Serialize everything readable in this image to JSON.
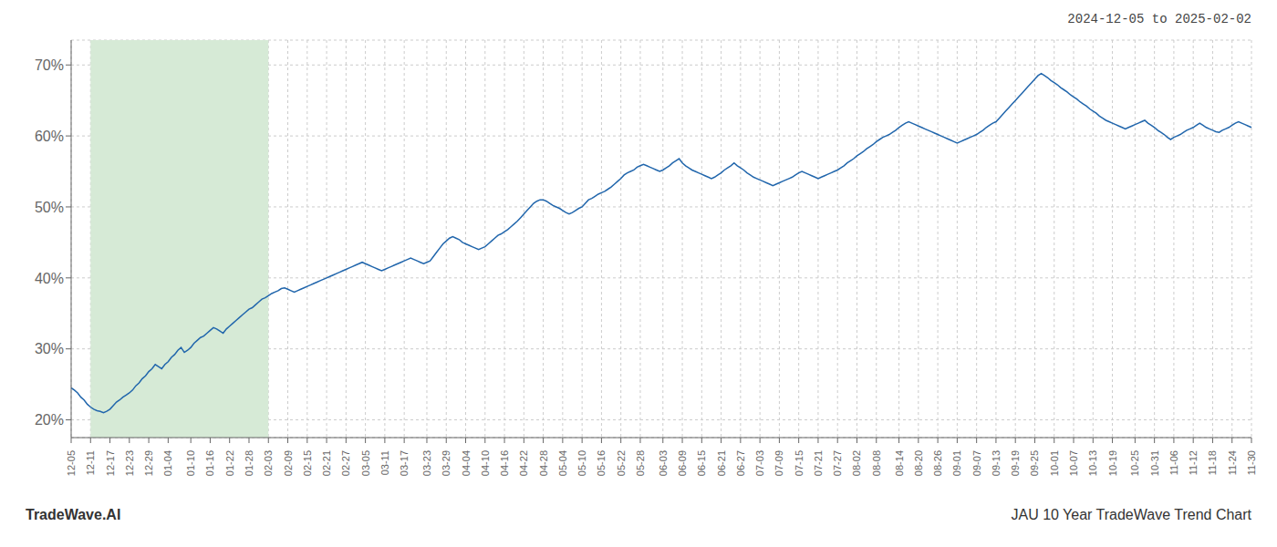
{
  "chart_data": {
    "type": "line",
    "title": "2024-12-05 to 2025-02-02",
    "annotations": [
      "TradeWave.AI",
      "JAU 10 Year TradeWave Trend Chart"
    ],
    "categories": [
      "12-05",
      null,
      null,
      null,
      null,
      null,
      "12-11",
      null,
      null,
      null,
      null,
      null,
      "12-17",
      null,
      null,
      null,
      null,
      null,
      "12-23",
      null,
      null,
      null,
      null,
      null,
      "12-29",
      null,
      null,
      null,
      null,
      null,
      "01-04",
      null,
      null,
      null,
      null,
      null,
      null,
      "01-10",
      null,
      null,
      null,
      null,
      null,
      "01-16",
      null,
      null,
      null,
      null,
      null,
      "01-22",
      null,
      null,
      null,
      null,
      null,
      "01-28",
      null,
      null,
      null,
      null,
      null,
      "02-03",
      null,
      null,
      null,
      null,
      null,
      "02-09",
      null,
      null,
      null,
      null,
      null,
      "02-15",
      null,
      null,
      null,
      null,
      null,
      "02-21",
      null,
      null,
      null,
      null,
      null,
      "02-27",
      null,
      null,
      null,
      null,
      null,
      "03-05",
      null,
      null,
      null,
      null,
      null,
      "03-11",
      null,
      null,
      null,
      null,
      null,
      "03-17",
      null,
      null,
      null,
      null,
      null,
      null,
      "03-23",
      null,
      null,
      null,
      null,
      null,
      "03-29",
      null,
      null,
      null,
      null,
      null,
      "04-04",
      null,
      null,
      null,
      null,
      null,
      "04-10",
      null,
      null,
      null,
      null,
      null,
      "04-16",
      null,
      null,
      null,
      null,
      null,
      "04-22",
      null,
      null,
      null,
      null,
      null,
      "04-28",
      null,
      null,
      null,
      null,
      null,
      "05-04",
      null,
      null,
      null,
      null,
      null,
      "05-10",
      null,
      null,
      null,
      null,
      null,
      "05-16",
      null,
      null,
      null,
      null,
      null,
      "05-22",
      null,
      null,
      null,
      null,
      null,
      "05-28",
      null,
      null,
      null,
      null,
      null,
      null,
      "06-03",
      null,
      null,
      null,
      null,
      null,
      "06-09",
      null,
      null,
      null,
      null,
      null,
      "06-15",
      null,
      null,
      null,
      null,
      null,
      "06-21",
      null,
      null,
      null,
      null,
      null,
      "06-27",
      null,
      null,
      null,
      null,
      null,
      "07-03",
      null,
      null,
      null,
      null,
      null,
      "07-09",
      null,
      null,
      null,
      null,
      null,
      "07-15",
      null,
      null,
      null,
      null,
      null,
      "07-21",
      null,
      null,
      null,
      null,
      null,
      "07-27",
      null,
      null,
      null,
      null,
      null,
      "08-02",
      null,
      null,
      null,
      null,
      null,
      "08-08",
      null,
      null,
      null,
      null,
      null,
      null,
      "08-14",
      null,
      null,
      null,
      null,
      null,
      "08-20",
      null,
      null,
      null,
      null,
      null,
      "08-26",
      null,
      null,
      null,
      null,
      null,
      "09-01",
      null,
      null,
      null,
      null,
      null,
      "09-07",
      null,
      null,
      null,
      null,
      null,
      "09-13",
      null,
      null,
      null,
      null,
      null,
      "09-19",
      null,
      null,
      null,
      null,
      null,
      "09-25",
      null,
      null,
      null,
      null,
      null,
      "10-01",
      null,
      null,
      null,
      null,
      null,
      "10-07",
      null,
      null,
      null,
      null,
      null,
      "10-13",
      null,
      null,
      null,
      null,
      null,
      "10-19",
      null,
      null,
      null,
      null,
      null,
      null,
      "10-25",
      null,
      null,
      null,
      null,
      null,
      "10-31",
      null,
      null,
      null,
      null,
      null,
      "11-06",
      null,
      null,
      null,
      null,
      null,
      "11-12",
      null,
      null,
      null,
      null,
      null,
      "11-18",
      null,
      null,
      null,
      null,
      null,
      "11-24",
      null,
      null,
      null,
      null,
      null,
      "11-30"
    ],
    "values": [
      0.245,
      0.242,
      0.238,
      0.232,
      0.228,
      0.222,
      0.218,
      0.215,
      0.213,
      0.212,
      0.21,
      0.212,
      0.215,
      0.22,
      0.225,
      0.228,
      0.232,
      0.235,
      0.238,
      0.242,
      0.248,
      0.252,
      0.258,
      0.262,
      0.268,
      0.272,
      0.278,
      0.275,
      0.272,
      0.278,
      0.282,
      0.288,
      0.292,
      0.298,
      0.302,
      0.295,
      0.298,
      0.302,
      0.308,
      0.312,
      0.316,
      0.318,
      0.322,
      0.326,
      0.33,
      0.328,
      0.325,
      0.322,
      0.328,
      0.332,
      0.336,
      0.34,
      0.344,
      0.348,
      0.352,
      0.356,
      0.358,
      0.362,
      0.366,
      0.37,
      0.372,
      0.375,
      0.378,
      0.38,
      0.382,
      0.385,
      0.386,
      0.384,
      0.382,
      0.38,
      0.382,
      0.384,
      0.386,
      0.388,
      0.39,
      0.392,
      0.394,
      0.396,
      0.398,
      0.4,
      0.402,
      0.404,
      0.406,
      0.408,
      0.41,
      0.412,
      0.414,
      0.416,
      0.418,
      0.42,
      0.422,
      0.42,
      0.418,
      0.416,
      0.414,
      0.412,
      0.41,
      0.412,
      0.414,
      0.416,
      0.418,
      0.42,
      0.422,
      0.424,
      0.426,
      0.428,
      0.426,
      0.424,
      0.422,
      0.42,
      0.422,
      0.424,
      0.43,
      0.436,
      0.442,
      0.448,
      0.452,
      0.456,
      0.458,
      0.456,
      0.454,
      0.45,
      0.448,
      0.446,
      0.444,
      0.442,
      0.44,
      0.442,
      0.444,
      0.448,
      0.452,
      0.456,
      0.46,
      0.462,
      0.465,
      0.468,
      0.472,
      0.476,
      0.48,
      0.485,
      0.49,
      0.495,
      0.5,
      0.505,
      0.508,
      0.51,
      0.51,
      0.508,
      0.505,
      0.502,
      0.5,
      0.498,
      0.495,
      0.492,
      0.49,
      0.492,
      0.495,
      0.498,
      0.5,
      0.505,
      0.51,
      0.512,
      0.515,
      0.518,
      0.52,
      0.522,
      0.525,
      0.528,
      0.532,
      0.536,
      0.54,
      0.545,
      0.548,
      0.55,
      0.552,
      0.556,
      0.558,
      0.56,
      0.558,
      0.556,
      0.554,
      0.552,
      0.55,
      0.552,
      0.555,
      0.558,
      0.562,
      0.565,
      0.568,
      0.562,
      0.558,
      0.555,
      0.552,
      0.55,
      0.548,
      0.546,
      0.544,
      0.542,
      0.54,
      0.542,
      0.545,
      0.548,
      0.552,
      0.555,
      0.558,
      0.562,
      0.558,
      0.555,
      0.552,
      0.548,
      0.545,
      0.542,
      0.54,
      0.538,
      0.536,
      0.534,
      0.532,
      0.53,
      0.532,
      0.534,
      0.536,
      0.538,
      0.54,
      0.542,
      0.545,
      0.548,
      0.55,
      0.548,
      0.546,
      0.544,
      0.542,
      0.54,
      0.542,
      0.544,
      0.546,
      0.548,
      0.55,
      0.552,
      0.555,
      0.558,
      0.562,
      0.565,
      0.568,
      0.572,
      0.575,
      0.578,
      0.582,
      0.585,
      0.588,
      0.592,
      0.595,
      0.598,
      0.6,
      0.602,
      0.605,
      0.608,
      0.612,
      0.615,
      0.618,
      0.62,
      0.618,
      0.616,
      0.614,
      0.612,
      0.61,
      0.608,
      0.606,
      0.604,
      0.602,
      0.6,
      0.598,
      0.596,
      0.594,
      0.592,
      0.59,
      0.592,
      0.594,
      0.596,
      0.598,
      0.6,
      0.602,
      0.605,
      0.608,
      0.612,
      0.615,
      0.618,
      0.62,
      0.625,
      0.63,
      0.635,
      0.64,
      0.645,
      0.65,
      0.655,
      0.66,
      0.665,
      0.67,
      0.675,
      0.68,
      0.685,
      0.688,
      0.685,
      0.682,
      0.678,
      0.675,
      0.672,
      0.668,
      0.665,
      0.662,
      0.658,
      0.655,
      0.652,
      0.648,
      0.645,
      0.642,
      0.638,
      0.635,
      0.632,
      0.628,
      0.625,
      0.622,
      0.62,
      0.618,
      0.616,
      0.614,
      0.612,
      0.61,
      0.612,
      0.614,
      0.616,
      0.618,
      0.62,
      0.622,
      0.618,
      0.615,
      0.612,
      0.608,
      0.605,
      0.602,
      0.598,
      0.595,
      0.598,
      0.6,
      0.602,
      0.605,
      0.608,
      0.61,
      0.612,
      0.615,
      0.618,
      0.615,
      0.612,
      0.61,
      0.608,
      0.606,
      0.605,
      0.608,
      0.61,
      0.612,
      0.615,
      0.618,
      0.62,
      0.618,
      0.616,
      0.614,
      0.612
    ],
    "color": "#2166ac",
    "highlight": {
      "from": "12-11",
      "to": "02-03",
      "color": "#d6ead6"
    },
    "ylim": [
      0.175,
      0.735
    ],
    "yticks": [
      {
        "value": 0.2,
        "label": "20%"
      },
      {
        "value": 0.3,
        "label": "30%"
      },
      {
        "value": 0.4,
        "label": "40%"
      },
      {
        "value": 0.5,
        "label": "50%"
      },
      {
        "value": 0.6,
        "label": "60%"
      },
      {
        "value": 0.7,
        "label": "70%"
      }
    ],
    "grid": true
  }
}
